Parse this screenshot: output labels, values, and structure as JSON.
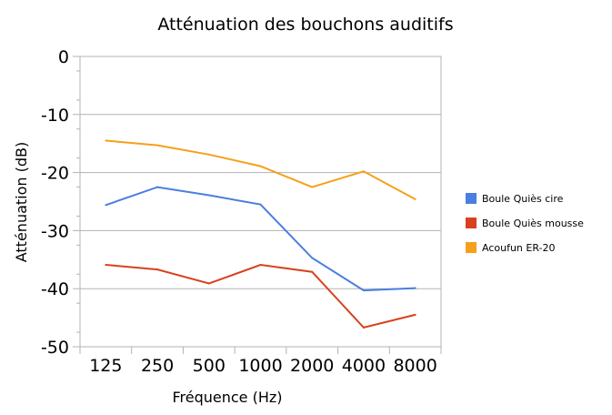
{
  "chart_data": {
    "type": "line",
    "title": "Atténuation des bouchons auditifs",
    "xlabel": "Fréquence (Hz)",
    "ylabel": "Atténuation (dB)",
    "categories": [
      "125",
      "250",
      "500",
      "1000",
      "2000",
      "4000",
      "8000"
    ],
    "ylim": [
      -50,
      0
    ],
    "yticks": [
      0,
      -10,
      -20,
      -30,
      -40,
      -50
    ],
    "grid": true,
    "legend_position": "right",
    "series": [
      {
        "name": "Boule Quiès cire",
        "color": "#4a7ee0",
        "values": [
          -25.6,
          -22.5,
          -23.9,
          -25.5,
          -34.7,
          -40.3,
          -39.9
        ]
      },
      {
        "name": "Boule Quiès mousse",
        "color": "#d9411e",
        "values": [
          -35.9,
          -36.7,
          -39.1,
          -35.9,
          -37.1,
          -46.7,
          -44.5
        ]
      },
      {
        "name": "Acoufun ER-20",
        "color": "#f5a01a",
        "values": [
          -14.5,
          -15.3,
          -16.9,
          -18.9,
          -22.5,
          -19.8,
          -24.6
        ]
      }
    ]
  }
}
